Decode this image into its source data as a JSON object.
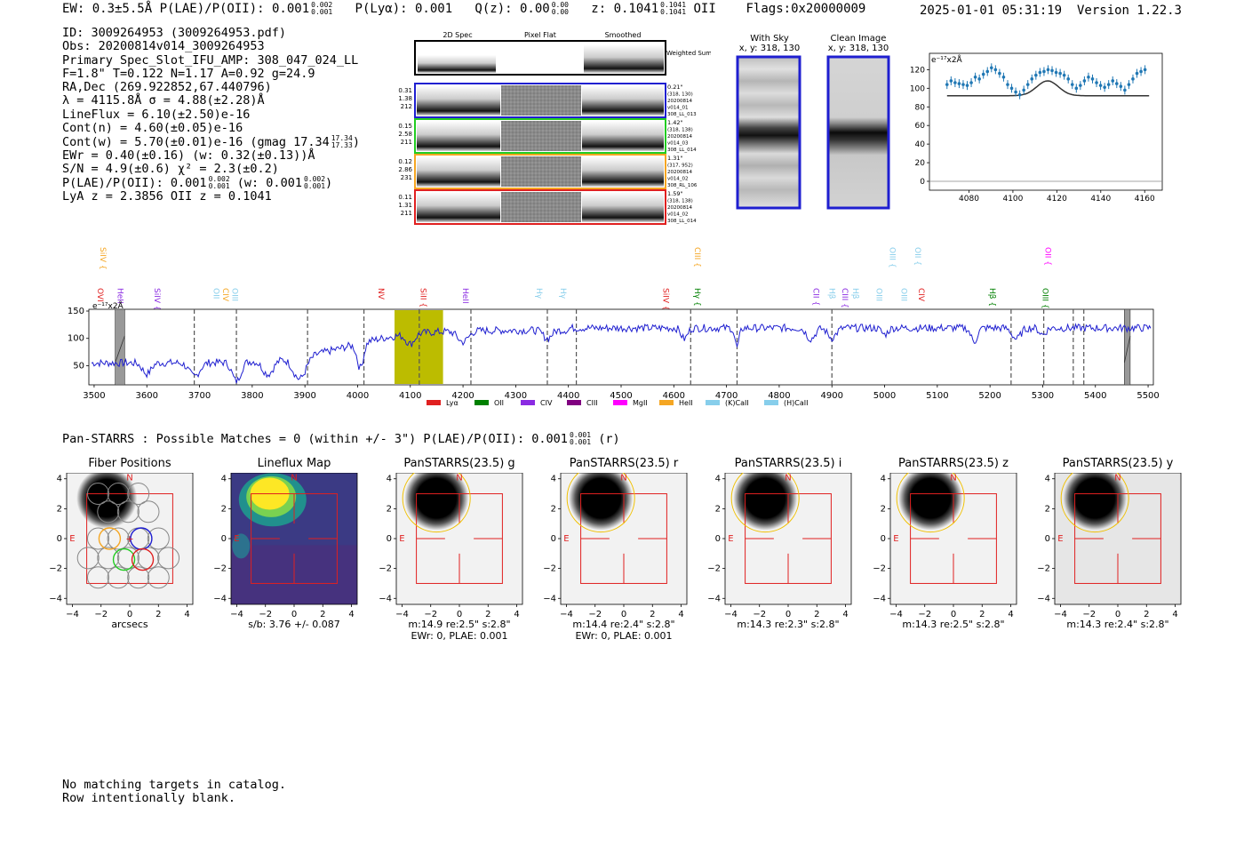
{
  "header": {
    "left_line": "EW: 0.3±5.5Å  P(LAE)/P(OII): 0.001",
    "plae_hi": "0.002",
    "plae_lo": "0.001",
    "plya": "P(Lyα): 0.001",
    "qz": "Q(z): 0.00",
    "qz_hi": "0.00",
    "qz_lo": "0.00",
    "z": "z: 0.1041",
    "z_hi": "0.1041",
    "z_lo": "0.1041",
    "z_line": "OII",
    "flags": "Flags:0x20000009",
    "timestamp": "2025-01-01 05:31:19",
    "version": "Version 1.22.3"
  },
  "info": {
    "id": "ID: 3009264953 (3009264953.pdf)",
    "obs": "Obs: 20200814v014_3009264953",
    "spec_slot": "Primary Spec_Slot_IFU_AMP: 308_047_024_LL",
    "fit": "F=1.8\"  T=0.122  N=1.17  A=0.92  g=24.9",
    "radec": "RA,Dec (269.922852,67.440796)",
    "lambda": "λ = 4115.8Å   σ = 4.88(±2.28)Å",
    "lineflux": "LineFlux = 6.10(±2.50)e-16",
    "cont_n": "Cont(n) = 4.60(±0.05)e-16",
    "cont_w": "Cont(w) = 5.70(±0.01)e-16 (gmag 17.34",
    "gmag_hi": "17.34",
    "gmag_lo": "17.33",
    "ewr": "EWr = 0.40(±0.16) (w: 0.32(±0.13))Å",
    "sn": "S/N = 4.9(±0.6)  χ² = 2.3(±0.2)",
    "plae": "P(LAE)/P(OII): 0.001",
    "plae_hi": "0.002",
    "plae_lo": "0.001",
    "plae_w": "(w: 0.001",
    "plae_w_hi": "0.002",
    "plae_w_lo": "0.001",
    "redshifts": "LyA z = 2.3856   OII z = 0.1041"
  },
  "cutouts": {
    "col_titles": [
      "2D Spec",
      "Pixel Flat",
      "Smoothed"
    ],
    "weighted_sum": "Weighted Sum",
    "rows": [
      {
        "left": [
          "0.31",
          "1.38",
          "212"
        ],
        "right": [
          "0.21\"",
          "(318, 130)",
          "20200814",
          "v014_01",
          "308_LL_013"
        ],
        "color": "#1f1fd0"
      },
      {
        "left": [
          "0.15",
          "2.58",
          "211"
        ],
        "right": [
          "1.42\"",
          "(318, 138)",
          "20200814",
          "v014_03",
          "308_LL_014"
        ],
        "color": "#22cc22"
      },
      {
        "left": [
          "0.12",
          "2.86",
          "231"
        ],
        "right": [
          "1.31\"",
          "(317, 952)",
          "20200814",
          "v014_02",
          "308_RL_106"
        ],
        "color": "#f5a623"
      },
      {
        "left": [
          "0.11",
          "1.31",
          "211"
        ],
        "right": [
          "1.59\"",
          "(318, 138)",
          "20200814",
          "v014_02",
          "308_LL_014"
        ],
        "color": "#e02020"
      }
    ],
    "with_sky_title": "With Sky",
    "with_sky_sub": "x, y: 318, 130",
    "clean_title": "Clean Image",
    "clean_sub": "x, y: 318, 130"
  },
  "zoom_plot": {
    "unit_label": "e⁻¹⁷x2Å",
    "y_ticks": [
      "0",
      "20",
      "40",
      "60",
      "80",
      "100",
      "120"
    ],
    "x_ticks": [
      "4080",
      "4100",
      "4120",
      "4140",
      "4160"
    ]
  },
  "spectrum": {
    "unit_label": "e⁻¹⁷x2Å",
    "y_ticks": [
      "50",
      "100",
      "150"
    ],
    "x_ticks": [
      "3500",
      "3600",
      "3700",
      "3800",
      "3900",
      "4000",
      "4100",
      "4200",
      "4300",
      "4400",
      "4500",
      "4600",
      "4700",
      "4800",
      "4900",
      "5000",
      "5100",
      "5200",
      "5300",
      "5400",
      "5500"
    ],
    "line_labels": [
      {
        "t": "OVI",
        "w": 3507,
        "c": "#e02020",
        "row": 0
      },
      {
        "t": "SiIV {",
        "w": 3512,
        "c": "#f5a623",
        "row": 1
      },
      {
        "t": "HeII",
        "w": 3545,
        "c": "#8a2be2",
        "row": 0
      },
      {
        "t": "SiIV {",
        "w": 3615,
        "c": "#8a2be2",
        "row": 0
      },
      {
        "t": "OII",
        "w": 3727,
        "c": "#87ceeb",
        "row": 0
      },
      {
        "t": "CIV",
        "w": 3745,
        "c": "#f5a623",
        "row": 0
      },
      {
        "t": "OIII",
        "w": 3762,
        "c": "#87ceeb",
        "row": 0
      },
      {
        "t": "NV",
        "w": 4040,
        "c": "#e02020",
        "row": 0
      },
      {
        "t": "SiII {",
        "w": 4120,
        "c": "#e02020",
        "row": 0
      },
      {
        "t": "HeII",
        "w": 4200,
        "c": "#8a2be2",
        "row": 0
      },
      {
        "t": "Hγ",
        "w": 4340,
        "c": "#87ceeb",
        "row": 0
      },
      {
        "t": "Hγ",
        "w": 4385,
        "c": "#87ceeb",
        "row": 0
      },
      {
        "t": "SiIV {",
        "w": 4580,
        "c": "#e02020",
        "row": 0
      },
      {
        "t": "CIII {",
        "w": 4640,
        "c": "#f5a623",
        "row": 1
      },
      {
        "t": "Hγ {",
        "w": 4640,
        "c": "#008000",
        "row": 0
      },
      {
        "t": "CII {",
        "w": 4865,
        "c": "#8a2be2",
        "row": 0
      },
      {
        "t": "Hβ",
        "w": 4895,
        "c": "#87ceeb",
        "row": 0
      },
      {
        "t": "CIII {",
        "w": 4920,
        "c": "#8a2be2",
        "row": 0
      },
      {
        "t": "Hβ",
        "w": 4940,
        "c": "#87ceeb",
        "row": 0
      },
      {
        "t": "OIII",
        "w": 4985,
        "c": "#87ceeb",
        "row": 0
      },
      {
        "t": "OIII {",
        "w": 5010,
        "c": "#87ceeb",
        "row": 1
      },
      {
        "t": "OIII",
        "w": 5032,
        "c": "#87ceeb",
        "row": 0
      },
      {
        "t": "OII {",
        "w": 5058,
        "c": "#87ceeb",
        "row": 1
      },
      {
        "t": "CIV",
        "w": 5065,
        "c": "#e02020",
        "row": 0
      },
      {
        "t": "Hβ {",
        "w": 5200,
        "c": "#008000",
        "row": 0
      },
      {
        "t": "OIII {",
        "w": 5300,
        "c": "#008000",
        "row": 0
      },
      {
        "t": "OII {",
        "w": 5305,
        "c": "#ff00ff",
        "row": 1
      }
    ],
    "legend": [
      {
        "name": "Lyα",
        "color": "#e02020"
      },
      {
        "name": "OII",
        "color": "#008000"
      },
      {
        "name": "CIV",
        "color": "#8a2be2"
      },
      {
        "name": "CIII",
        "color": "#800080"
      },
      {
        "name": "MgII",
        "color": "#ff00ff"
      },
      {
        "name": "HeII",
        "color": "#f5a623"
      },
      {
        "name": "(K)CaII",
        "color": "#87ceeb"
      },
      {
        "name": "(H)CaII",
        "color": "#87ceeb"
      }
    ]
  },
  "panstarrs": {
    "title": "Pan-STARRS : Possible Matches = 0 (within +/- 3\")  P(LAE)/P(OII): 0.001",
    "title_hi": "0.001",
    "title_lo": "0.001",
    "title_band": "(r)",
    "axis_ticks_y": [
      "4",
      "2",
      "0",
      "−2",
      "−4"
    ],
    "axis_ticks_x": [
      "−4",
      "−2",
      "0",
      "2",
      "4"
    ],
    "north": "N",
    "east": "E",
    "thumbs": [
      {
        "title": "Fiber Positions",
        "cap1": "arcsecs",
        "cap2": ""
      },
      {
        "title": "Lineflux Map",
        "cap1": "s/b: 3.76 +/- 0.087",
        "cap2": ""
      },
      {
        "title": "PanSTARRS(23.5) g",
        "cap1": "m:14.9  re:2.5\"  s:2.8\"",
        "cap2": "EWr: 0, PLAE: 0.001"
      },
      {
        "title": "PanSTARRS(23.5) r",
        "cap1": "m:14.4  re:2.4\"  s:2.8\"",
        "cap2": "EWr: 0, PLAE: 0.001"
      },
      {
        "title": "PanSTARRS(23.5) i",
        "cap1": "m:14.3  re:2.3\"  s:2.8\"",
        "cap2": ""
      },
      {
        "title": "PanSTARRS(23.5) z",
        "cap1": "m:14.3  re:2.5\"  s:2.8\"",
        "cap2": ""
      },
      {
        "title": "PanSTARRS(23.5) y",
        "cap1": "m:14.3  re:2.4\"  s:2.8\"",
        "cap2": ""
      }
    ]
  },
  "footer": {
    "line1": "No matching targets in catalog.",
    "line2": "Row intentionally blank."
  }
}
